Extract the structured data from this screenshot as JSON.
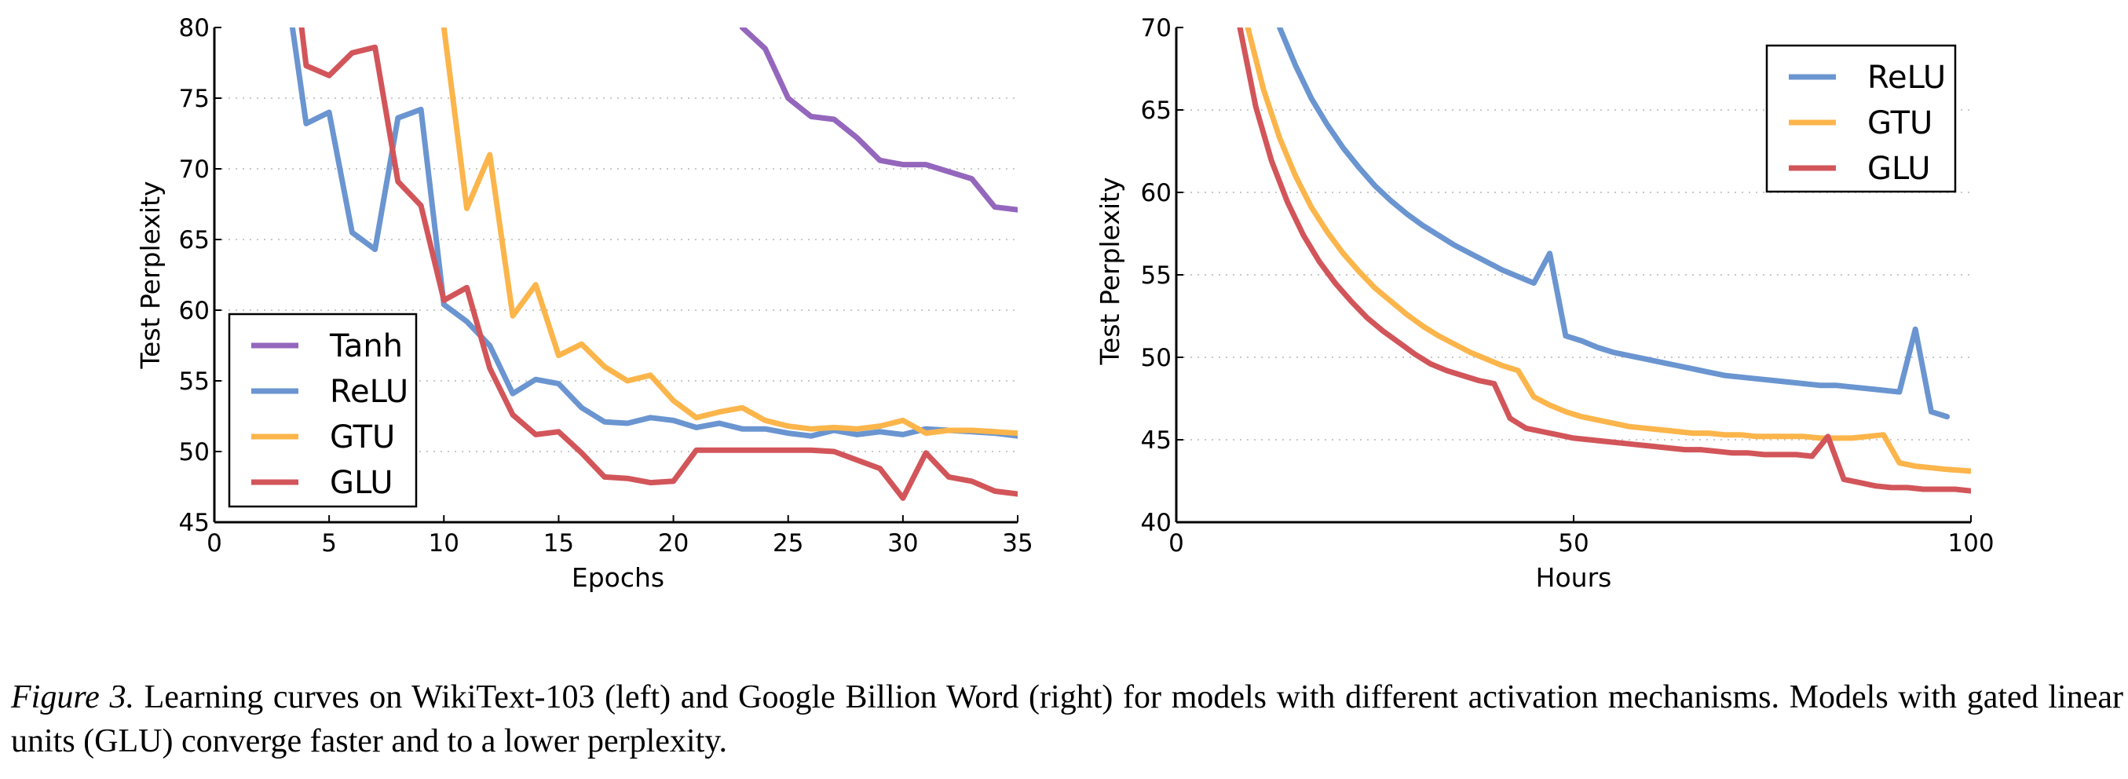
{
  "chart_data": [
    {
      "type": "line",
      "xlabel": "Epochs",
      "ylabel": "Test Perplexity",
      "xlim": [
        0,
        35
      ],
      "ylim": [
        45,
        80
      ],
      "xticks": [
        "0",
        "5",
        "10",
        "15",
        "20",
        "25",
        "30",
        "35"
      ],
      "yticks": [
        "45",
        "50",
        "55",
        "60",
        "65",
        "70",
        "75",
        "80"
      ],
      "grid": "horizontal dotted",
      "legend_position": "lower-left",
      "legend": [
        "Tanh",
        "ReLU",
        "GTU",
        "GLU"
      ],
      "series": [
        {
          "name": "Tanh",
          "color": "#9467bd",
          "points": [
            [
              23,
              80
            ],
            [
              24,
              78.5
            ],
            [
              25,
              75
            ],
            [
              26,
              73.7
            ],
            [
              27,
              73.5
            ],
            [
              28,
              72.2
            ],
            [
              29,
              70.6
            ],
            [
              30,
              70.3
            ],
            [
              31,
              70.3
            ],
            [
              32,
              69.8
            ],
            [
              33,
              69.3
            ],
            [
              34,
              67.3
            ],
            [
              35,
              67.1
            ]
          ]
        },
        {
          "name": "ReLU",
          "color": "#6a95d0",
          "points": [
            [
              3.4,
              80
            ],
            [
              4,
              73.2
            ],
            [
              5,
              74
            ],
            [
              6,
              65.5
            ],
            [
              7,
              64.3
            ],
            [
              8,
              73.6
            ],
            [
              9,
              74.2
            ],
            [
              10,
              60.4
            ],
            [
              11,
              59.2
            ],
            [
              12,
              57.5
            ],
            [
              13,
              54.1
            ],
            [
              14,
              55.1
            ],
            [
              15,
              54.8
            ],
            [
              16,
              53.1
            ],
            [
              17,
              52.1
            ],
            [
              18,
              52
            ],
            [
              19,
              52.4
            ],
            [
              20,
              52.2
            ],
            [
              21,
              51.7
            ],
            [
              22,
              52
            ],
            [
              23,
              51.6
            ],
            [
              24,
              51.6
            ],
            [
              25,
              51.3
            ],
            [
              26,
              51.1
            ],
            [
              27,
              51.5
            ],
            [
              28,
              51.2
            ],
            [
              29,
              51.4
            ],
            [
              30,
              51.2
            ],
            [
              31,
              51.6
            ],
            [
              32,
              51.5
            ],
            [
              33,
              51.4
            ],
            [
              34,
              51.3
            ],
            [
              35,
              51.1
            ]
          ]
        },
        {
          "name": "GTU",
          "color": "#fbb54b",
          "points": [
            [
              10,
              80
            ],
            [
              11,
              67.2
            ],
            [
              12,
              71
            ],
            [
              13,
              59.6
            ],
            [
              14,
              61.8
            ],
            [
              15,
              56.8
            ],
            [
              16,
              57.6
            ],
            [
              17,
              56
            ],
            [
              18,
              55
            ],
            [
              19,
              55.4
            ],
            [
              20,
              53.6
            ],
            [
              21,
              52.4
            ],
            [
              22,
              52.8
            ],
            [
              23,
              53.1
            ],
            [
              24,
              52.2
            ],
            [
              25,
              51.8
            ],
            [
              26,
              51.6
            ],
            [
              27,
              51.7
            ],
            [
              28,
              51.6
            ],
            [
              29,
              51.8
            ],
            [
              30,
              52.2
            ],
            [
              31,
              51.3
            ],
            [
              32,
              51.5
            ],
            [
              33,
              51.5
            ],
            [
              34,
              51.4
            ],
            [
              35,
              51.3
            ]
          ]
        },
        {
          "name": "GLU",
          "color": "#d2555a",
          "points": [
            [
              3.8,
              80
            ],
            [
              4,
              77.3
            ],
            [
              5,
              76.6
            ],
            [
              6,
              78.2
            ],
            [
              7,
              78.6
            ],
            [
              8,
              69.1
            ],
            [
              9,
              67.4
            ],
            [
              10,
              60.7
            ],
            [
              11,
              61.6
            ],
            [
              12,
              55.9
            ],
            [
              13,
              52.6
            ],
            [
              14,
              51.2
            ],
            [
              15,
              51.4
            ],
            [
              16,
              49.9
            ],
            [
              17,
              48.2
            ],
            [
              18,
              48.1
            ],
            [
              19,
              47.8
            ],
            [
              20,
              47.9
            ],
            [
              21,
              50.1
            ],
            [
              22,
              50.1
            ],
            [
              23,
              50.1
            ],
            [
              24,
              50.1
            ],
            [
              25,
              50.1
            ],
            [
              26,
              50.1
            ],
            [
              27,
              50
            ],
            [
              28,
              49.4
            ],
            [
              29,
              48.8
            ],
            [
              30,
              46.7
            ],
            [
              31,
              49.9
            ],
            [
              32,
              48.2
            ],
            [
              33,
              47.9
            ],
            [
              34,
              47.2
            ],
            [
              35,
              47
            ]
          ]
        }
      ]
    },
    {
      "type": "line",
      "xlabel": "Hours",
      "ylabel": "Test Perplexity",
      "xlim": [
        0,
        100
      ],
      "ylim": [
        40,
        70
      ],
      "xticks": [
        "0",
        "50",
        "100"
      ],
      "yticks": [
        "40",
        "45",
        "50",
        "55",
        "60",
        "65",
        "70"
      ],
      "grid": "horizontal dotted",
      "legend_position": "upper-right",
      "legend": [
        "ReLU",
        "GTU",
        "GLU"
      ],
      "series": [
        {
          "name": "ReLU",
          "color": "#6a95d0",
          "points": [
            [
              13,
              70
            ],
            [
              15,
              67.7
            ],
            [
              17,
              65.7
            ],
            [
              19,
              64.1
            ],
            [
              21,
              62.7
            ],
            [
              23,
              61.5
            ],
            [
              25,
              60.4
            ],
            [
              27,
              59.5
            ],
            [
              29,
              58.7
            ],
            [
              31,
              58
            ],
            [
              33,
              57.4
            ],
            [
              35,
              56.8
            ],
            [
              37,
              56.3
            ],
            [
              39,
              55.8
            ],
            [
              41,
              55.3
            ],
            [
              43,
              54.9
            ],
            [
              45,
              54.5
            ],
            [
              47,
              56.3
            ],
            [
              49,
              51.3
            ],
            [
              51,
              51
            ],
            [
              53,
              50.6
            ],
            [
              55,
              50.3
            ],
            [
              57,
              50.1
            ],
            [
              59,
              49.9
            ],
            [
              61,
              49.7
            ],
            [
              63,
              49.5
            ],
            [
              65,
              49.3
            ],
            [
              67,
              49.1
            ],
            [
              69,
              48.9
            ],
            [
              71,
              48.8
            ],
            [
              73,
              48.7
            ],
            [
              75,
              48.6
            ],
            [
              77,
              48.5
            ],
            [
              79,
              48.4
            ],
            [
              81,
              48.3
            ],
            [
              83,
              48.3
            ],
            [
              85,
              48.2
            ],
            [
              87,
              48.1
            ],
            [
              89,
              48
            ],
            [
              91,
              47.9
            ],
            [
              93,
              51.7
            ],
            [
              95,
              46.7
            ],
            [
              97,
              46.4
            ]
          ]
        },
        {
          "name": "GTU",
          "color": "#fbb54b",
          "points": [
            [
              9,
              70
            ],
            [
              11,
              66.2
            ],
            [
              13,
              63.3
            ],
            [
              15,
              61
            ],
            [
              17,
              59.1
            ],
            [
              19,
              57.6
            ],
            [
              21,
              56.3
            ],
            [
              23,
              55.2
            ],
            [
              25,
              54.2
            ],
            [
              27,
              53.4
            ],
            [
              29,
              52.6
            ],
            [
              31,
              51.9
            ],
            [
              33,
              51.3
            ],
            [
              35,
              50.8
            ],
            [
              37,
              50.3
            ],
            [
              39,
              49.9
            ],
            [
              41,
              49.5
            ],
            [
              43,
              49.2
            ],
            [
              45,
              47.6
            ],
            [
              47,
              47.1
            ],
            [
              49,
              46.7
            ],
            [
              51,
              46.4
            ],
            [
              53,
              46.2
            ],
            [
              55,
              46
            ],
            [
              57,
              45.8
            ],
            [
              59,
              45.7
            ],
            [
              61,
              45.6
            ],
            [
              63,
              45.5
            ],
            [
              65,
              45.4
            ],
            [
              67,
              45.4
            ],
            [
              69,
              45.3
            ],
            [
              71,
              45.3
            ],
            [
              73,
              45.2
            ],
            [
              75,
              45.2
            ],
            [
              77,
              45.2
            ],
            [
              79,
              45.2
            ],
            [
              81,
              45.1
            ],
            [
              83,
              45.1
            ],
            [
              85,
              45.1
            ],
            [
              87,
              45.2
            ],
            [
              89,
              45.3
            ],
            [
              91,
              43.6
            ],
            [
              93,
              43.4
            ],
            [
              95,
              43.3
            ],
            [
              97,
              43.2
            ],
            [
              100,
              43.1
            ]
          ]
        },
        {
          "name": "GLU",
          "color": "#d2555a",
          "points": [
            [
              8,
              70
            ],
            [
              10,
              65.2
            ],
            [
              12,
              61.9
            ],
            [
              14,
              59.4
            ],
            [
              16,
              57.4
            ],
            [
              18,
              55.8
            ],
            [
              20,
              54.5
            ],
            [
              22,
              53.4
            ],
            [
              24,
              52.4
            ],
            [
              26,
              51.6
            ],
            [
              28,
              50.9
            ],
            [
              30,
              50.2
            ],
            [
              32,
              49.6
            ],
            [
              34,
              49.2
            ],
            [
              36,
              48.9
            ],
            [
              38,
              48.6
            ],
            [
              40,
              48.4
            ],
            [
              42,
              46.3
            ],
            [
              44,
              45.7
            ],
            [
              46,
              45.5
            ],
            [
              48,
              45.3
            ],
            [
              50,
              45.1
            ],
            [
              52,
              45
            ],
            [
              54,
              44.9
            ],
            [
              56,
              44.8
            ],
            [
              58,
              44.7
            ],
            [
              60,
              44.6
            ],
            [
              62,
              44.5
            ],
            [
              64,
              44.4
            ],
            [
              66,
              44.4
            ],
            [
              68,
              44.3
            ],
            [
              70,
              44.2
            ],
            [
              72,
              44.2
            ],
            [
              74,
              44.1
            ],
            [
              76,
              44.1
            ],
            [
              78,
              44.1
            ],
            [
              80,
              44
            ],
            [
              82,
              45.2
            ],
            [
              84,
              42.6
            ],
            [
              86,
              42.4
            ],
            [
              88,
              42.2
            ],
            [
              90,
              42.1
            ],
            [
              92,
              42.1
            ],
            [
              94,
              42
            ],
            [
              96,
              42
            ],
            [
              98,
              42
            ],
            [
              100,
              41.9
            ]
          ]
        }
      ]
    }
  ],
  "caption": {
    "label": "Figure 3.",
    "text": " Learning curves on WikiText-103 (left) and Google Billion Word (right) for models with different activation mechanisms. Models with gated linear units (GLU) converge faster and to a lower perplexity."
  }
}
